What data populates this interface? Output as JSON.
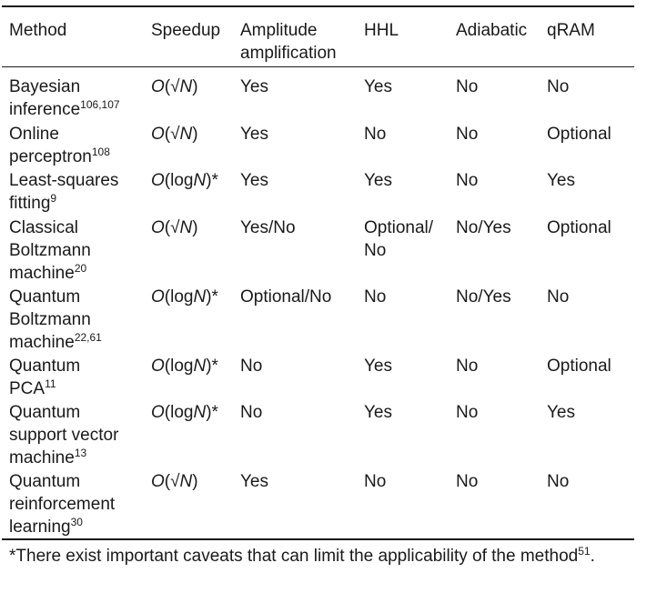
{
  "table": {
    "headers": [
      "Method",
      "Speedup",
      "Amplitude amplification",
      "HHL",
      "Adiabatic",
      "qRAM"
    ],
    "rows": [
      {
        "method_lines": [
          "Bayesian",
          "inference"
        ],
        "method_ref": "106,107",
        "speedup_prefix": "O(",
        "speedup_var": "√N",
        "speedup_suffix": ")",
        "amplitude": [
          "Yes"
        ],
        "hhl": [
          "Yes"
        ],
        "adiabatic": "No",
        "qram": "No"
      },
      {
        "method_lines": [
          "Online",
          "perceptron"
        ],
        "method_ref": "108",
        "speedup_prefix": "O(",
        "speedup_var": "√N",
        "speedup_suffix": ")",
        "amplitude": [
          "Yes"
        ],
        "hhl": [
          "No"
        ],
        "adiabatic": "No",
        "qram": "Optional"
      },
      {
        "method_lines": [
          "Least-squares",
          "fitting"
        ],
        "method_ref": "9",
        "speedup_prefix": "O(log",
        "speedup_var": "N",
        "speedup_suffix": ")*",
        "amplitude": [
          "Yes"
        ],
        "hhl": [
          "Yes"
        ],
        "adiabatic": "No",
        "qram": "Yes"
      },
      {
        "method_lines": [
          "Classical",
          "Boltzmann",
          "machine"
        ],
        "method_ref": "20",
        "speedup_prefix": "O(",
        "speedup_var": "√N",
        "speedup_suffix": ")",
        "amplitude": [
          "Yes/No"
        ],
        "hhl": [
          "Optional/",
          "No"
        ],
        "adiabatic": "No/Yes",
        "qram": "Optional"
      },
      {
        "method_lines": [
          "Quantum",
          "Boltzmann",
          "machine"
        ],
        "method_ref": "22,61",
        "speedup_prefix": "O(log",
        "speedup_var": "N",
        "speedup_suffix": ")*",
        "amplitude": [
          "Optional/No"
        ],
        "hhl": [
          "No"
        ],
        "adiabatic": "No/Yes",
        "qram": "No"
      },
      {
        "method_lines": [
          "Quantum",
          "PCA"
        ],
        "method_ref": "11",
        "speedup_prefix": "O(log",
        "speedup_var": "N",
        "speedup_suffix": ")*",
        "amplitude": [
          "No"
        ],
        "hhl": [
          "Yes"
        ],
        "adiabatic": "No",
        "qram": "Optional"
      },
      {
        "method_lines": [
          "Quantum",
          "support vector",
          "machine"
        ],
        "method_ref": "13",
        "speedup_prefix": "O(log",
        "speedup_var": "N",
        "speedup_suffix": ")*",
        "amplitude": [
          "No"
        ],
        "hhl": [
          "Yes"
        ],
        "adiabatic": "No",
        "qram": "Yes"
      },
      {
        "method_lines": [
          "Quantum",
          "reinforcement",
          "learning"
        ],
        "method_ref": "30",
        "speedup_prefix": "O(",
        "speedup_var": "√N",
        "speedup_suffix": ")",
        "amplitude": [
          "Yes"
        ],
        "hhl": [
          "No"
        ],
        "adiabatic": "No",
        "qram": "No"
      }
    ]
  },
  "footnote": {
    "text": "*There exist important caveats that can limit the applicability of the method",
    "ref": "51",
    "end": "."
  }
}
